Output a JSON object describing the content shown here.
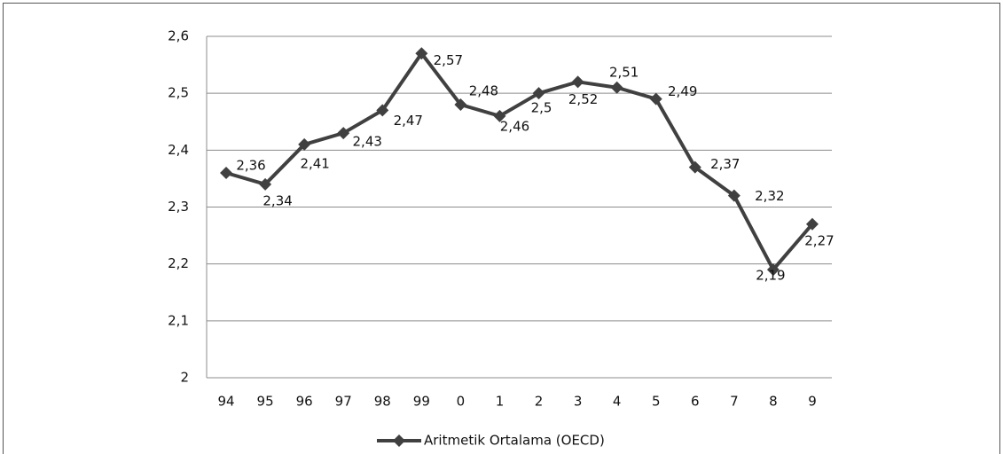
{
  "chart_data": {
    "type": "line",
    "categories": [
      "94",
      "95",
      "96",
      "97",
      "98",
      "99",
      "0",
      "1",
      "2",
      "3",
      "4",
      "5",
      "6",
      "7",
      "8",
      "9"
    ],
    "series": [
      {
        "name": "Aritmetik Ortalama (OECD)",
        "color": "#404040",
        "values": [
          2.36,
          2.34,
          2.41,
          2.43,
          2.47,
          2.57,
          2.48,
          2.46,
          2.5,
          2.52,
          2.51,
          2.49,
          2.37,
          2.32,
          2.19,
          2.27
        ],
        "value_labels": [
          "2,36",
          "2,34",
          "2,41",
          "2,43",
          "2,47",
          "2,57",
          "2,48",
          "2,46",
          "2,5",
          "2,52",
          "2,51",
          "2,49",
          "2,37",
          "2,32",
          "2,19",
          "2,27"
        ]
      }
    ],
    "ylim": [
      2,
      2.6
    ],
    "yticks": [
      2,
      {
        "value": 2.1,
        "label": "2,1"
      },
      {
        "value": 2.2,
        "label": "2,2"
      },
      {
        "value": 2.3,
        "label": "2,3"
      },
      {
        "value": 2.4,
        "label": "2,4"
      },
      {
        "value": 2.5,
        "label": "2,5"
      },
      {
        "value": 2.6,
        "label": "2,6"
      }
    ],
    "grid": true,
    "legend": "bottom"
  }
}
